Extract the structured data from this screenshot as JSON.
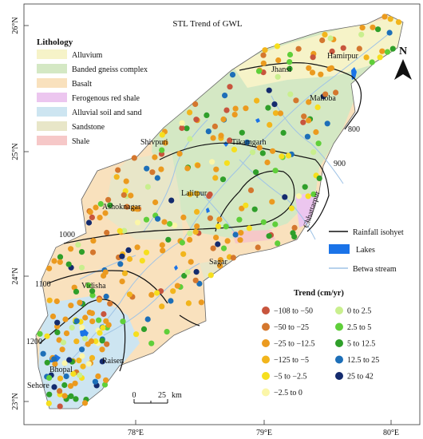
{
  "title": "STL Trend of GWL",
  "lithology": {
    "heading": "Lithology",
    "items": [
      {
        "label": "Alluvium",
        "color": "#f6f3c8"
      },
      {
        "label": "Banded gneiss complex",
        "color": "#d4e8c4"
      },
      {
        "label": "Basalt",
        "color": "#f9e1bd"
      },
      {
        "label": "Ferogenous red shale",
        "color": "#ecc6ef"
      },
      {
        "label": "Alluvial soil and sand",
        "color": "#cde5f1"
      },
      {
        "label": "Sandstone",
        "color": "#e8e6c8"
      },
      {
        "label": "Shale",
        "color": "#f6c8c8"
      }
    ]
  },
  "line_legend": {
    "rainfall_isohyet": "Rainfall isohyet",
    "lakes": "Lakes",
    "betwa_stream": "Betwa stream",
    "isohyet_color": "#111111",
    "lake_color": "#1a73e8",
    "stream_color": "#9fc3e6"
  },
  "trend_legend": {
    "heading": "Trend (cm/yr)",
    "classes": [
      {
        "label": "−108 to −50",
        "color": "#c8553d"
      },
      {
        "label": "−50 to −25",
        "color": "#d4772e"
      },
      {
        "label": "−25 to −12.5",
        "color": "#eb9a1f"
      },
      {
        "label": "−125 to −5",
        "color": "#f2b51c"
      },
      {
        "label": "−5 to −2.5",
        "color": "#f6df1e"
      },
      {
        "label": "−2.5 to 0",
        "color": "#fbf6a8"
      },
      {
        "label": "0 to 2.5",
        "color": "#c9ef8e"
      },
      {
        "label": "2.5 to 5",
        "color": "#5fcf3a"
      },
      {
        "label": "5 to 12.5",
        "color": "#2f9f2a"
      },
      {
        "label": "12.5 to 25",
        "color": "#1d6fb8"
      },
      {
        "label": "25 to 42",
        "color": "#142b6e"
      }
    ]
  },
  "places": [
    "Jhansi",
    "Hamirpur",
    "Mahoba",
    "Shivpuri",
    "Tikamgarh",
    "Lalitpur",
    "Ashoknagar",
    "Chhattarpur",
    "Sagar",
    "Vidisha",
    "Raisen",
    "Bhopal",
    "Sehore"
  ],
  "isohyet_labels": [
    "800",
    "900",
    "1000",
    "1100",
    "1200"
  ],
  "latitudes": [
    "26°N",
    "25°N",
    "24°N",
    "23°N"
  ],
  "longitudes": [
    "78°E",
    "79°E",
    "80°E"
  ],
  "north": "N",
  "scale_bar": {
    "zero": "0",
    "value": "25",
    "unit": "km"
  }
}
